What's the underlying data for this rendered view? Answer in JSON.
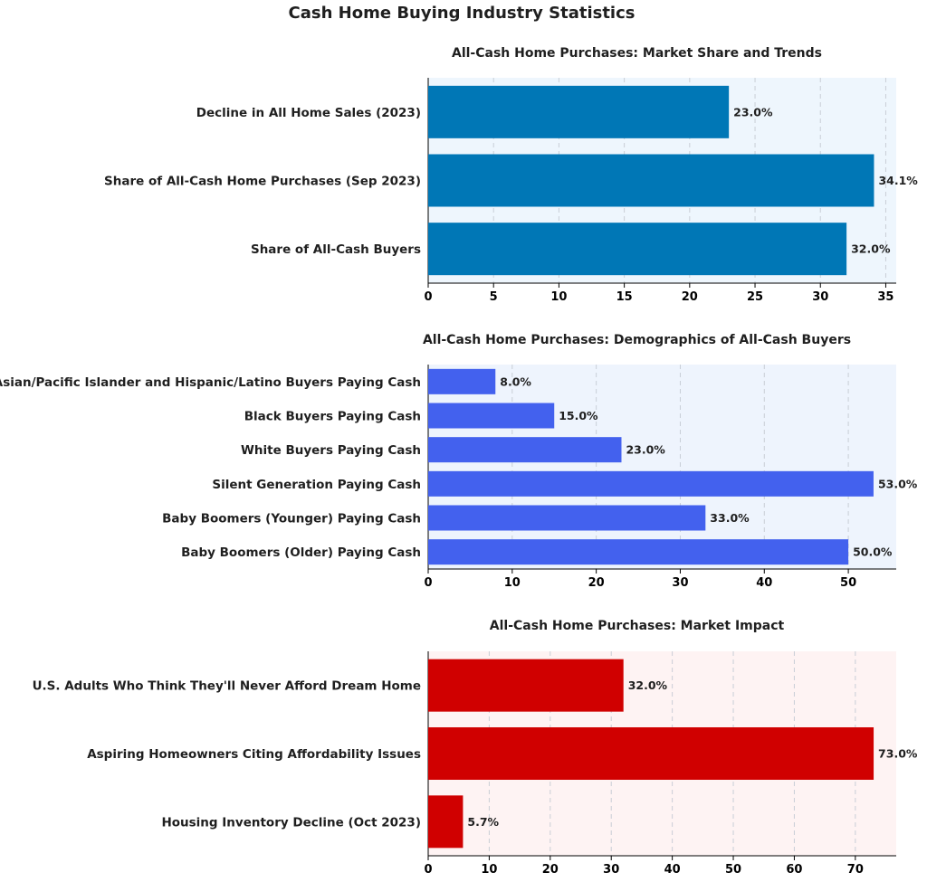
{
  "title": "Cash Home Buying Industry Statistics",
  "chart_data": [
    {
      "type": "bar",
      "orientation": "horizontal",
      "title": "All-Cash Home Purchases: Market Share and Trends",
      "categories": [
        "Share of All-Cash Buyers",
        "Share of All-Cash Home Purchases (Sep 2023)",
        "Decline in All Home Sales (2023)"
      ],
      "values": [
        32.0,
        34.1,
        23.0
      ],
      "value_labels": [
        "32.0%",
        "34.1%",
        "23.0%"
      ],
      "xticks": [
        0,
        5,
        10,
        15,
        20,
        25,
        30,
        35
      ],
      "xlim": [
        0,
        35.8
      ],
      "grid": "vertical dashed",
      "bar_color": "#0077b6",
      "panel_background": "#eef6fd"
    },
    {
      "type": "bar",
      "orientation": "horizontal",
      "title": "All-Cash Home Purchases: Demographics of All-Cash Buyers",
      "categories": [
        "Baby Boomers (Older) Paying Cash",
        "Baby Boomers (Younger) Paying Cash",
        "Silent Generation Paying Cash",
        "White Buyers Paying Cash",
        "Black Buyers Paying Cash",
        "Asian/Pacific Islander and Hispanic/Latino Buyers Paying Cash"
      ],
      "values": [
        50.0,
        33.0,
        53.0,
        23.0,
        15.0,
        8.0
      ],
      "value_labels": [
        "50.0%",
        "33.0%",
        "53.0%",
        "23.0%",
        "15.0%",
        "8.0%"
      ],
      "xticks": [
        0,
        10,
        20,
        30,
        40,
        50
      ],
      "xlim": [
        0,
        55.7
      ],
      "grid": "vertical dashed",
      "bar_color": "#4361ee",
      "panel_background": "#eef4fd"
    },
    {
      "type": "bar",
      "orientation": "horizontal",
      "title": "All-Cash Home Purchases: Market Impact",
      "categories": [
        "Housing Inventory Decline (Oct 2023)",
        "Aspiring Homeowners Citing Affordability Issues",
        "U.S. Adults Who Think They'll Never Afford Dream Home"
      ],
      "values": [
        5.7,
        73.0,
        32.0
      ],
      "value_labels": [
        "5.7%",
        "73.0%",
        "32.0%"
      ],
      "xticks": [
        0,
        10,
        20,
        30,
        40,
        50,
        60,
        70
      ],
      "xlim": [
        0,
        76.7
      ],
      "grid": "vertical dashed",
      "bar_color": "#d00000",
      "panel_background": "#fef3f3"
    }
  ]
}
